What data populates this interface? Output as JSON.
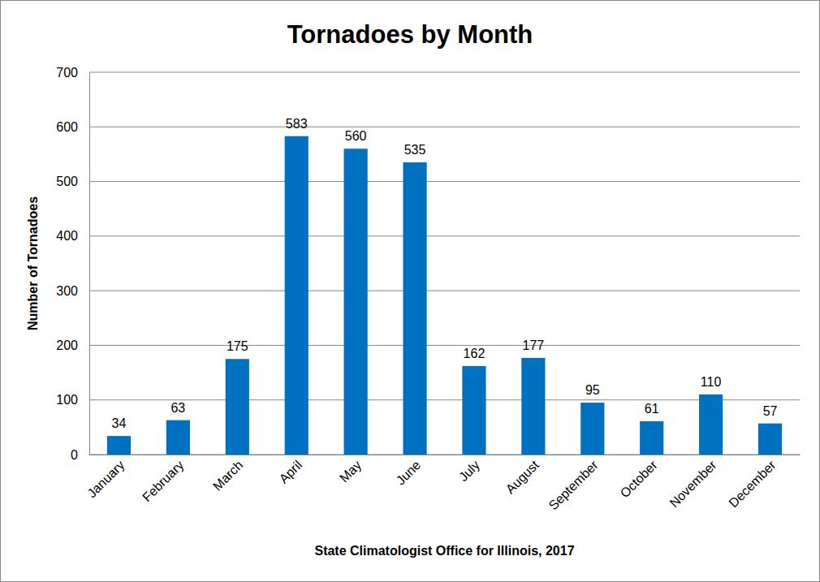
{
  "chart_data": {
    "type": "bar",
    "title": "Tornadoes by Month",
    "x_label": "State Climatologist Office for Illinois, 2017",
    "y_label": "Number of Tornadoes",
    "categories": [
      "January",
      "February",
      "March",
      "April",
      "May",
      "June",
      "July",
      "August",
      "September",
      "October",
      "November",
      "December"
    ],
    "values": [
      34,
      63,
      175,
      583,
      560,
      535,
      162,
      177,
      95,
      61,
      110,
      57
    ],
    "color": "#0070c0",
    "ylim": [
      0,
      700
    ],
    "yticks": [
      0,
      100,
      200,
      300,
      400,
      500,
      600,
      700
    ],
    "grid": true,
    "data_labels": true
  }
}
